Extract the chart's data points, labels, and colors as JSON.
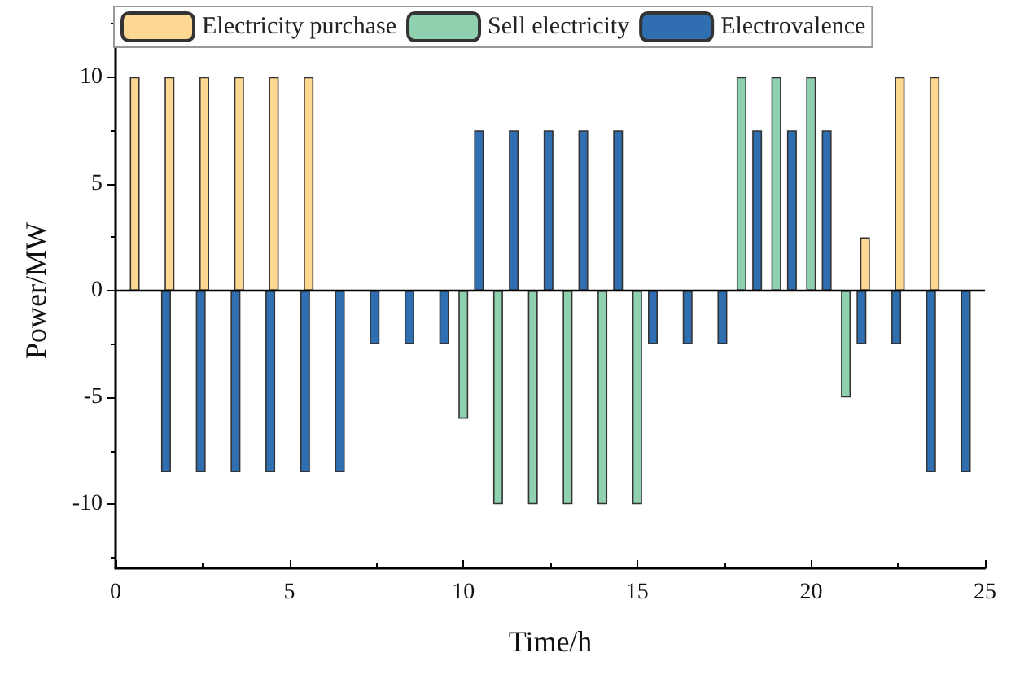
{
  "chart_data": {
    "type": "bar",
    "xlabel": "Time/h",
    "ylabel": "Power/MW",
    "x": [
      1,
      2,
      3,
      4,
      5,
      6,
      7,
      8,
      9,
      10,
      11,
      12,
      13,
      14,
      15,
      16,
      17,
      18,
      19,
      20,
      21,
      22,
      23,
      24
    ],
    "series": [
      {
        "name": "Electricity purchase",
        "color": "#fdd893",
        "values": [
          10,
          10,
          10,
          10,
          10,
          10,
          null,
          null,
          null,
          null,
          null,
          null,
          null,
          null,
          null,
          null,
          null,
          null,
          null,
          null,
          null,
          2.5,
          10,
          10
        ]
      },
      {
        "name": "Sell electricity",
        "color": "#8fd1af",
        "values": [
          null,
          null,
          null,
          null,
          null,
          null,
          null,
          null,
          null,
          -6,
          -10,
          -10,
          -10,
          -10,
          -10,
          null,
          null,
          10,
          10,
          10,
          -5,
          null,
          null,
          null
        ]
      },
      {
        "name": "Electrovalence",
        "color": "#2f6fb1",
        "values": [
          -8.5,
          -8.5,
          -8.5,
          -8.5,
          -8.5,
          -8.5,
          -2.5,
          -2.5,
          -2.5,
          7.5,
          7.5,
          7.5,
          7.5,
          7.5,
          -2.5,
          -2.5,
          -2.5,
          7.5,
          7.5,
          7.5,
          -2.5,
          -2.5,
          -8.5,
          -8.5
        ]
      }
    ],
    "xlim": [
      0,
      25
    ],
    "xticks": [
      0,
      5,
      10,
      15,
      20,
      25
    ],
    "ylim": [
      -13,
      13
    ],
    "yticks": [
      -10,
      -5,
      0,
      5,
      10
    ],
    "ref_lines": [
      {
        "axis": "y",
        "value": 0
      }
    ],
    "grid": false,
    "legend": "top"
  }
}
